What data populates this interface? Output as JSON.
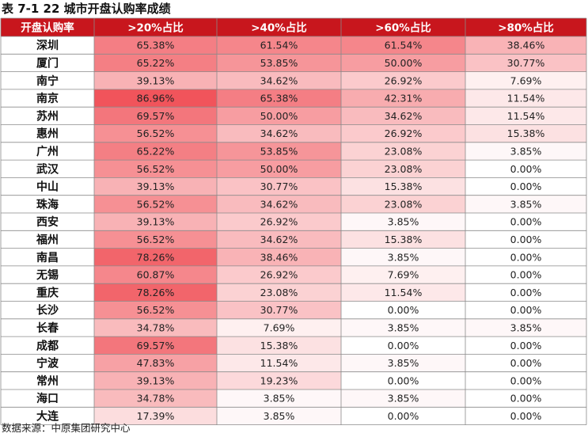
{
  "title": "表 7-1 22 城市开盘认购率成绩",
  "source": "数据来源：中原集团研究中心",
  "colors": {
    "header_bg": "#c8161d",
    "header_text": "#ffffff",
    "heat_max": "#f04e55",
    "heat_min": "#ffffff",
    "grid_line": "#8a8a8a",
    "city_text": "#111111"
  },
  "chart_data": {
    "type": "table",
    "title": "表 7-1 22 城市开盘认购率成绩",
    "row_header_label": "开盘认购率",
    "columns": [
      ">20%占比",
      ">40%占比",
      ">60%占比",
      ">80%占比"
    ],
    "rows": [
      {
        "city": "深圳",
        "values": [
          "65.38%",
          "61.54%",
          "61.54%",
          "38.46%"
        ]
      },
      {
        "city": "厦门",
        "values": [
          "65.22%",
          "53.85%",
          "50.00%",
          "30.77%"
        ]
      },
      {
        "city": "南宁",
        "values": [
          "39.13%",
          "34.62%",
          "26.92%",
          "7.69%"
        ]
      },
      {
        "city": "南京",
        "values": [
          "86.96%",
          "65.38%",
          "42.31%",
          "11.54%"
        ]
      },
      {
        "city": "苏州",
        "values": [
          "69.57%",
          "50.00%",
          "34.62%",
          "11.54%"
        ]
      },
      {
        "city": "惠州",
        "values": [
          "56.52%",
          "34.62%",
          "26.92%",
          "15.38%"
        ]
      },
      {
        "city": "广州",
        "values": [
          "65.22%",
          "53.85%",
          "23.08%",
          "3.85%"
        ]
      },
      {
        "city": "武汉",
        "values": [
          "56.52%",
          "50.00%",
          "23.08%",
          "0.00%"
        ]
      },
      {
        "city": "中山",
        "values": [
          "39.13%",
          "30.77%",
          "15.38%",
          "0.00%"
        ]
      },
      {
        "city": "珠海",
        "values": [
          "56.52%",
          "34.62%",
          "23.08%",
          "3.85%"
        ]
      },
      {
        "city": "西安",
        "values": [
          "39.13%",
          "26.92%",
          "3.85%",
          "0.00%"
        ]
      },
      {
        "city": "福州",
        "values": [
          "56.52%",
          "34.62%",
          "15.38%",
          "0.00%"
        ]
      },
      {
        "city": "南昌",
        "values": [
          "78.26%",
          "38.46%",
          "3.85%",
          "0.00%"
        ]
      },
      {
        "city": "无锡",
        "values": [
          "60.87%",
          "26.92%",
          "7.69%",
          "0.00%"
        ]
      },
      {
        "city": "重庆",
        "values": [
          "78.26%",
          "23.08%",
          "11.54%",
          "0.00%"
        ]
      },
      {
        "city": "长沙",
        "values": [
          "56.52%",
          "30.77%",
          "0.00%",
          "0.00%"
        ]
      },
      {
        "city": "长春",
        "values": [
          "34.78%",
          "7.69%",
          "3.85%",
          "3.85%"
        ]
      },
      {
        "city": "成都",
        "values": [
          "69.57%",
          "15.38%",
          "0.00%",
          "0.00%"
        ]
      },
      {
        "city": "宁波",
        "values": [
          "47.83%",
          "11.54%",
          "3.85%",
          "0.00%"
        ]
      },
      {
        "city": "常州",
        "values": [
          "39.13%",
          "19.23%",
          "0.00%",
          "0.00%"
        ]
      },
      {
        "city": "海口",
        "values": [
          "34.78%",
          "3.85%",
          "3.85%",
          "0.00%"
        ]
      },
      {
        "city": "大连",
        "values": [
          "17.39%",
          "3.85%",
          "0.00%",
          "0.00%"
        ]
      }
    ]
  }
}
